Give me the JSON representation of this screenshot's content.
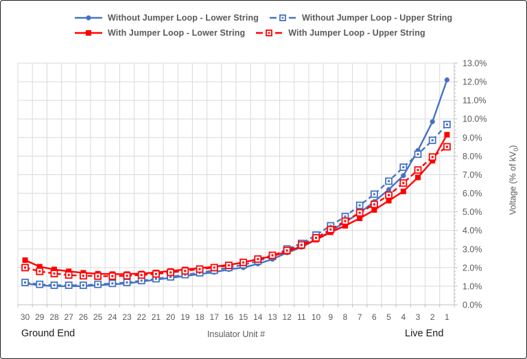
{
  "chart_data": {
    "type": "line",
    "title": "",
    "xlabel": "Insulator Unit #",
    "ylabel": "Voltage (% of kV0)",
    "ylabel_parts": {
      "prefix": "Voltage (% of kV",
      "sub": "0",
      "suffix": ")"
    },
    "caption_left": "Ground End",
    "caption_right": "Live End",
    "categories": [
      30,
      29,
      28,
      27,
      26,
      25,
      24,
      23,
      22,
      21,
      20,
      19,
      18,
      17,
      16,
      15,
      14,
      13,
      12,
      11,
      10,
      9,
      8,
      7,
      6,
      5,
      4,
      3,
      2,
      1
    ],
    "y_ticks": [
      "0.0%",
      "1.0%",
      "2.0%",
      "3.0%",
      "4.0%",
      "5.0%",
      "6.0%",
      "7.0%",
      "8.0%",
      "9.0%",
      "10.0%",
      "11.0%",
      "12.0%",
      "13.0%"
    ],
    "ylim": [
      0,
      13
    ],
    "grid": true,
    "legend_position": "top",
    "series": [
      {
        "name": "Without Jumper Loop - Lower String",
        "color": "#4472C4",
        "line": "solid",
        "marker": "filled-circle",
        "values": [
          1.15,
          1.05,
          1.0,
          1.0,
          1.0,
          1.05,
          1.1,
          1.15,
          1.25,
          1.35,
          1.45,
          1.55,
          1.65,
          1.75,
          1.9,
          2.0,
          2.2,
          2.45,
          2.8,
          3.1,
          3.5,
          3.95,
          4.45,
          4.95,
          5.55,
          6.2,
          6.95,
          8.3,
          9.85,
          12.1
        ]
      },
      {
        "name": "Without Jumper Loop - Upper String",
        "color": "#4472C4",
        "line": "dashed",
        "marker": "open-square",
        "values": [
          1.2,
          1.1,
          1.05,
          1.05,
          1.05,
          1.1,
          1.15,
          1.2,
          1.3,
          1.4,
          1.5,
          1.62,
          1.72,
          1.85,
          2.0,
          2.15,
          2.35,
          2.6,
          3.0,
          3.3,
          3.75,
          4.25,
          4.75,
          5.35,
          5.95,
          6.65,
          7.4,
          8.1,
          8.85,
          9.7
        ]
      },
      {
        "name": "With Jumper Loop - Lower String",
        "color": "#FF0000",
        "line": "solid",
        "marker": "filled-square",
        "values": [
          2.4,
          2.05,
          1.9,
          1.8,
          1.72,
          1.67,
          1.65,
          1.65,
          1.68,
          1.74,
          1.82,
          1.9,
          1.97,
          2.05,
          2.15,
          2.28,
          2.45,
          2.62,
          2.85,
          3.15,
          3.5,
          3.9,
          4.25,
          4.65,
          5.1,
          5.6,
          6.1,
          6.85,
          7.75,
          9.15
        ]
      },
      {
        "name": "With Jumper Loop - Upper String",
        "color": "#FF0000",
        "line": "dashed",
        "marker": "open-square",
        "values": [
          2.0,
          1.8,
          1.68,
          1.6,
          1.56,
          1.54,
          1.54,
          1.56,
          1.6,
          1.66,
          1.74,
          1.82,
          1.92,
          2.0,
          2.12,
          2.28,
          2.46,
          2.66,
          2.92,
          3.22,
          3.6,
          4.05,
          4.5,
          4.95,
          5.4,
          5.9,
          6.55,
          7.25,
          7.95,
          8.5
        ]
      }
    ],
    "colors": {
      "grid": "#D9D9D9",
      "axis": "#BFBFBF",
      "tick_text": "#595959",
      "legend_text": "#595959",
      "caption_text": "#1a1a1a",
      "blue": "#4472C4",
      "red": "#FF0000"
    }
  }
}
